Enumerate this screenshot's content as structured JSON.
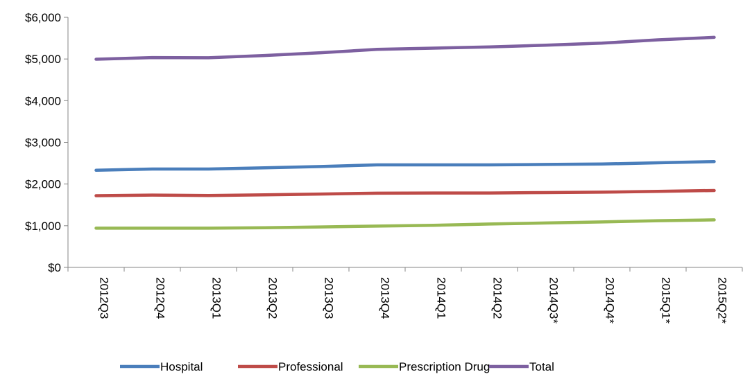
{
  "chart_data": {
    "type": "line",
    "title": "",
    "xlabel": "",
    "ylabel": "",
    "categories": [
      "2012Q3",
      "2012Q4",
      "2013Q1",
      "2013Q2",
      "2013Q3",
      "2013Q4",
      "2014Q1",
      "2014Q2",
      "2014Q3*",
      "2014Q4*",
      "2015Q1*",
      "2015Q2*"
    ],
    "ylim": [
      0,
      6000
    ],
    "yticks": [
      0,
      1000,
      2000,
      3000,
      4000,
      5000,
      6000
    ],
    "ytick_labels": [
      "$0",
      "$1,000",
      "$2,000",
      "$3,000",
      "$4,000",
      "$5,000",
      "$6,000"
    ],
    "grid": false,
    "legend_position": "bottom",
    "series": [
      {
        "name": "Hospital",
        "color": "#4a7ebb",
        "values": [
          2330,
          2360,
          2360,
          2390,
          2420,
          2460,
          2460,
          2460,
          2470,
          2480,
          2510,
          2540
        ]
      },
      {
        "name": "Professional",
        "color": "#be4b48",
        "values": [
          1720,
          1735,
          1725,
          1740,
          1760,
          1780,
          1785,
          1785,
          1795,
          1805,
          1825,
          1845
        ]
      },
      {
        "name": "Prescription Drug",
        "color": "#98b954",
        "values": [
          940,
          940,
          940,
          950,
          970,
          990,
          1010,
          1040,
          1065,
          1090,
          1120,
          1140
        ]
      },
      {
        "name": "Total",
        "color": "#7d60a0",
        "values": [
          4995,
          5035,
          5030,
          5085,
          5150,
          5230,
          5260,
          5290,
          5330,
          5380,
          5460,
          5520
        ]
      }
    ]
  }
}
